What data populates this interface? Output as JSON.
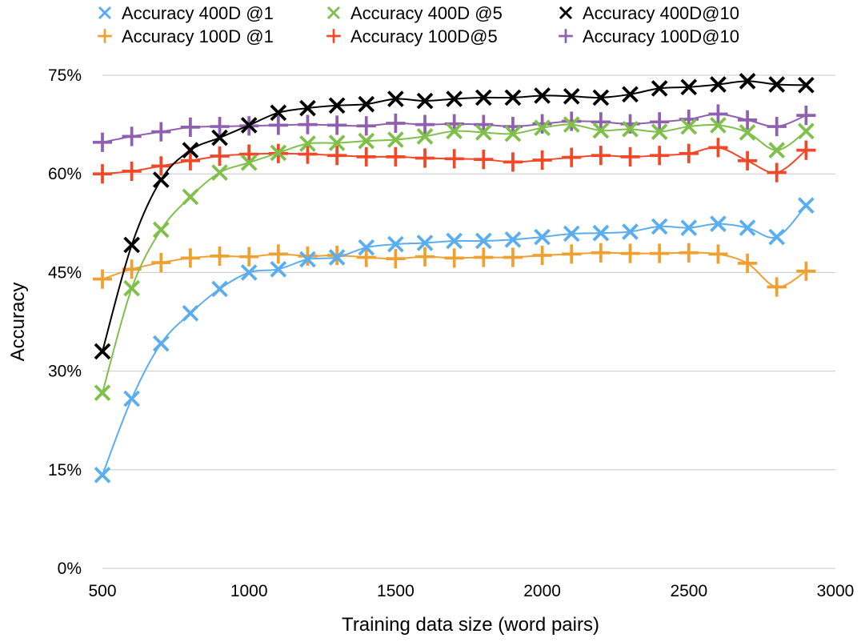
{
  "chart_data": {
    "type": "line",
    "title": "",
    "xlabel": "Training data size (word pairs)",
    "ylabel": "Accuracy",
    "xlim": [
      500,
      3000
    ],
    "ylim": [
      0,
      75
    ],
    "x_ticks": [
      500,
      1000,
      1500,
      2000,
      2500,
      3000
    ],
    "y_ticks": [
      0,
      15,
      30,
      45,
      60,
      75
    ],
    "y_tick_labels": [
      "0%",
      "15%",
      "30%",
      "45%",
      "60%",
      "75%"
    ],
    "grid": "horizontal",
    "legend_position": "top",
    "x": [
      500,
      600,
      700,
      800,
      900,
      1000,
      1100,
      1200,
      1300,
      1400,
      1500,
      1600,
      1700,
      1800,
      1900,
      2000,
      2100,
      2200,
      2300,
      2400,
      2500,
      2600,
      2700,
      2800,
      2900
    ],
    "series": [
      {
        "name": "Accuracy 400D @1",
        "color": "#5aaeef",
        "marker": "x-thick",
        "values": [
          14.2,
          25.8,
          34.2,
          38.8,
          42.5,
          45.0,
          45.5,
          47.0,
          47.3,
          48.8,
          49.3,
          49.5,
          49.8,
          49.8,
          50.0,
          50.4,
          50.9,
          51.0,
          51.2,
          52.0,
          51.8,
          52.4,
          51.8,
          50.4,
          55.2
        ]
      },
      {
        "name": "Accuracy 100D @1",
        "color": "#f0a030",
        "marker": "plus",
        "values": [
          44.0,
          45.5,
          46.5,
          47.2,
          47.5,
          47.4,
          47.8,
          47.5,
          47.6,
          47.3,
          47.1,
          47.4,
          47.2,
          47.3,
          47.3,
          47.6,
          47.8,
          48.0,
          47.9,
          47.9,
          48.0,
          47.8,
          46.4,
          42.8,
          45.2
        ]
      },
      {
        "name": "Accuracy 400D @5",
        "color": "#7fc04a",
        "marker": "x-thick",
        "values": [
          26.7,
          42.6,
          51.5,
          56.5,
          60.2,
          61.7,
          63.2,
          64.6,
          64.7,
          65.0,
          65.2,
          65.7,
          66.5,
          66.3,
          66.1,
          67.0,
          67.5,
          66.6,
          66.8,
          66.4,
          67.2,
          67.4,
          66.3,
          63.6,
          66.5
        ]
      },
      {
        "name": "Accuracy 100D@5",
        "color": "#f04828",
        "marker": "plus",
        "values": [
          60.0,
          60.4,
          61.2,
          62.0,
          62.7,
          63.0,
          63.1,
          63.0,
          62.8,
          62.6,
          62.6,
          62.4,
          62.3,
          62.2,
          61.8,
          62.1,
          62.5,
          62.8,
          62.6,
          62.8,
          63.1,
          64.0,
          62.0,
          60.2,
          63.6
        ]
      },
      {
        "name": "Accuracy 400D@10",
        "color": "#000000",
        "marker": "x-thick",
        "values": [
          33.0,
          49.2,
          59.1,
          63.6,
          65.5,
          67.4,
          69.3,
          70.0,
          70.4,
          70.6,
          71.4,
          71.1,
          71.4,
          71.6,
          71.6,
          71.9,
          71.8,
          71.6,
          72.1,
          73.0,
          73.2,
          73.6,
          74.1,
          73.6,
          73.5
        ]
      },
      {
        "name": "Accuracy 100D@10",
        "color": "#9060b0",
        "marker": "plus",
        "values": [
          64.8,
          65.7,
          66.4,
          67.1,
          67.2,
          67.3,
          67.4,
          67.5,
          67.4,
          67.3,
          67.7,
          67.5,
          67.6,
          67.5,
          67.2,
          67.6,
          68.0,
          67.9,
          67.6,
          67.9,
          68.3,
          69.1,
          68.2,
          67.2,
          68.9
        ]
      }
    ]
  }
}
